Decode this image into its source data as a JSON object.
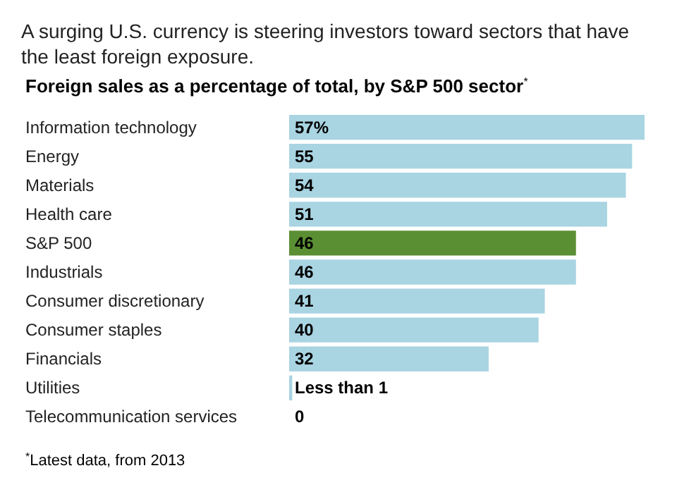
{
  "chart_data": {
    "type": "bar",
    "orientation": "horizontal",
    "title": "A surging U.S. currency is steering investors toward sectors that have the least foreign exposure.",
    "subtitle": "Foreign sales as a percentage of total, by S&P 500 sector$^{*}$",
    "categories": [
      "Information technology",
      "Energy",
      "Materials",
      "Health care",
      "S&P 500",
      "Industrials",
      "Consumer discretionary",
      "Consumer staples",
      "Financials",
      "Utilities",
      "Telecommunication services"
    ],
    "values": [
      57,
      55,
      54,
      51,
      46,
      46,
      41,
      40,
      32,
      0.5,
      0
    ],
    "colors": [
      "#a9d4e2",
      "#a9d4e2",
      "#a9d4e2",
      "#a9d4e2",
      "#5b8f33",
      "#a9d4e2",
      "#a9d4e2",
      "#a9d4e2",
      "#a9d4e2",
      "#a9d4e2",
      "#a9d4e2"
    ],
    "value_labels": [
      "57%",
      "55",
      "54",
      "51",
      "46",
      "46",
      "41",
      "40",
      "32",
      "Less than 1",
      "0"
    ],
    "annotations": [
      "$^{*}$Latest data, from 2013"
    ]
  }
}
